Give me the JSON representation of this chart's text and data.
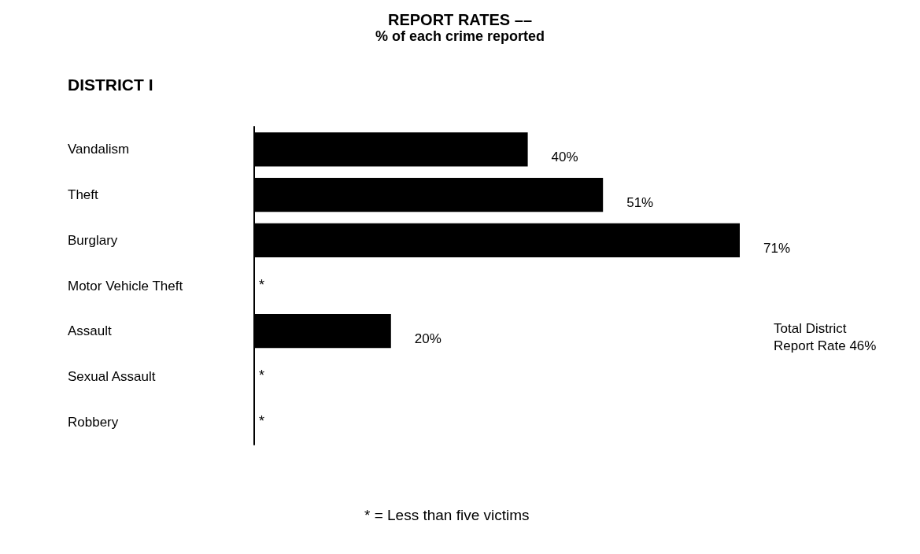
{
  "chart_data": {
    "type": "bar",
    "orientation": "horizontal",
    "title": "REPORT RATES ––",
    "subtitle": "% of each crime reported",
    "categories": [
      "Vandalism",
      "Theft",
      "Burglary",
      "Motor Vehicle Theft",
      "Assault",
      "Sexual Assault",
      "Robbery"
    ],
    "values": [
      40,
      51,
      71,
      null,
      20,
      null,
      null
    ],
    "value_labels": [
      "40%",
      "51%",
      "71%",
      "*",
      "20%",
      "*",
      "*"
    ],
    "color": "#000000",
    "tick_labels": "y",
    "annotations": [
      "DISTRICT I",
      "Total District\nReport Rate 46%",
      "* = Less than five victims"
    ]
  }
}
